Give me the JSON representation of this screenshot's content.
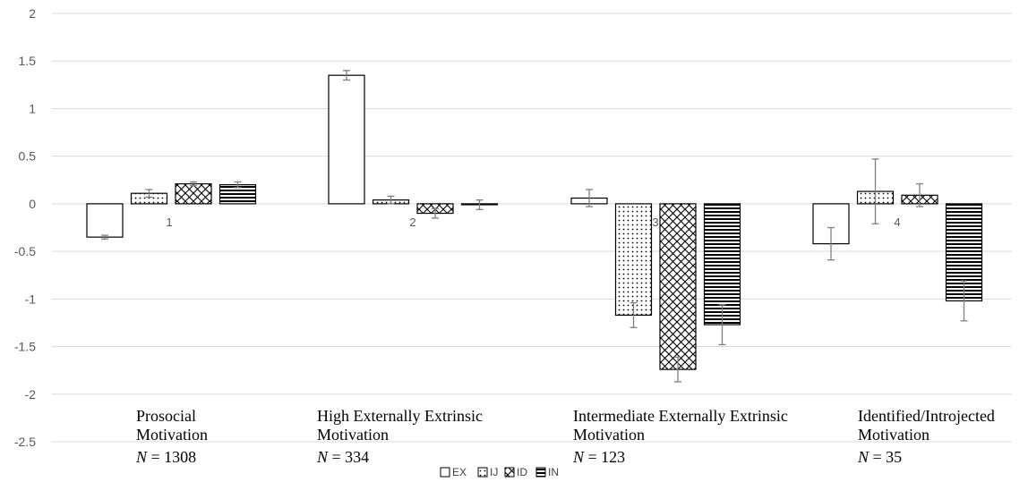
{
  "chart_data": {
    "type": "bar",
    "title": "",
    "xlabel": "",
    "ylabel": "",
    "ylim": [
      -2.5,
      2
    ],
    "yticks": [
      "2",
      "1.5",
      "1",
      "0.5",
      "0",
      "-0.5",
      "-1",
      "-1.5",
      "-2",
      "-2.5"
    ],
    "grid": true,
    "legend_position": "bottom",
    "categories": [
      "1",
      "2",
      "3",
      "4"
    ],
    "group_labels": [
      {
        "lines": [
          "Prosocial",
          "Motivation"
        ],
        "n": "N = 1308"
      },
      {
        "lines": [
          "High Externally Extrinsic",
          "Motivation"
        ],
        "n": "N = 334"
      },
      {
        "lines": [
          "Intermediate Externally Extrinsic",
          "Motivation"
        ],
        "n": "N = 123"
      },
      {
        "lines": [
          "Identified/Introjected",
          "Motivation"
        ],
        "n": "N = 35"
      }
    ],
    "series": [
      {
        "name": "EX",
        "pattern": "plain",
        "values": [
          -0.35,
          1.35,
          0.06,
          -0.42
        ],
        "errors": [
          0.02,
          0.05,
          0.09,
          0.17
        ]
      },
      {
        "name": "IJ",
        "pattern": "dots",
        "values": [
          0.11,
          0.04,
          -1.17,
          0.13
        ],
        "errors": [
          0.04,
          0.04,
          0.13,
          0.34
        ]
      },
      {
        "name": "ID",
        "pattern": "crosshatch",
        "values": [
          0.21,
          -0.1,
          -1.74,
          0.09
        ],
        "errors": [
          0.02,
          0.05,
          0.13,
          0.12
        ]
      },
      {
        "name": "IN",
        "pattern": "hlines",
        "values": [
          0.2,
          -0.01,
          -1.27,
          -1.02
        ],
        "errors": [
          0.03,
          0.05,
          0.21,
          0.21
        ]
      }
    ]
  }
}
